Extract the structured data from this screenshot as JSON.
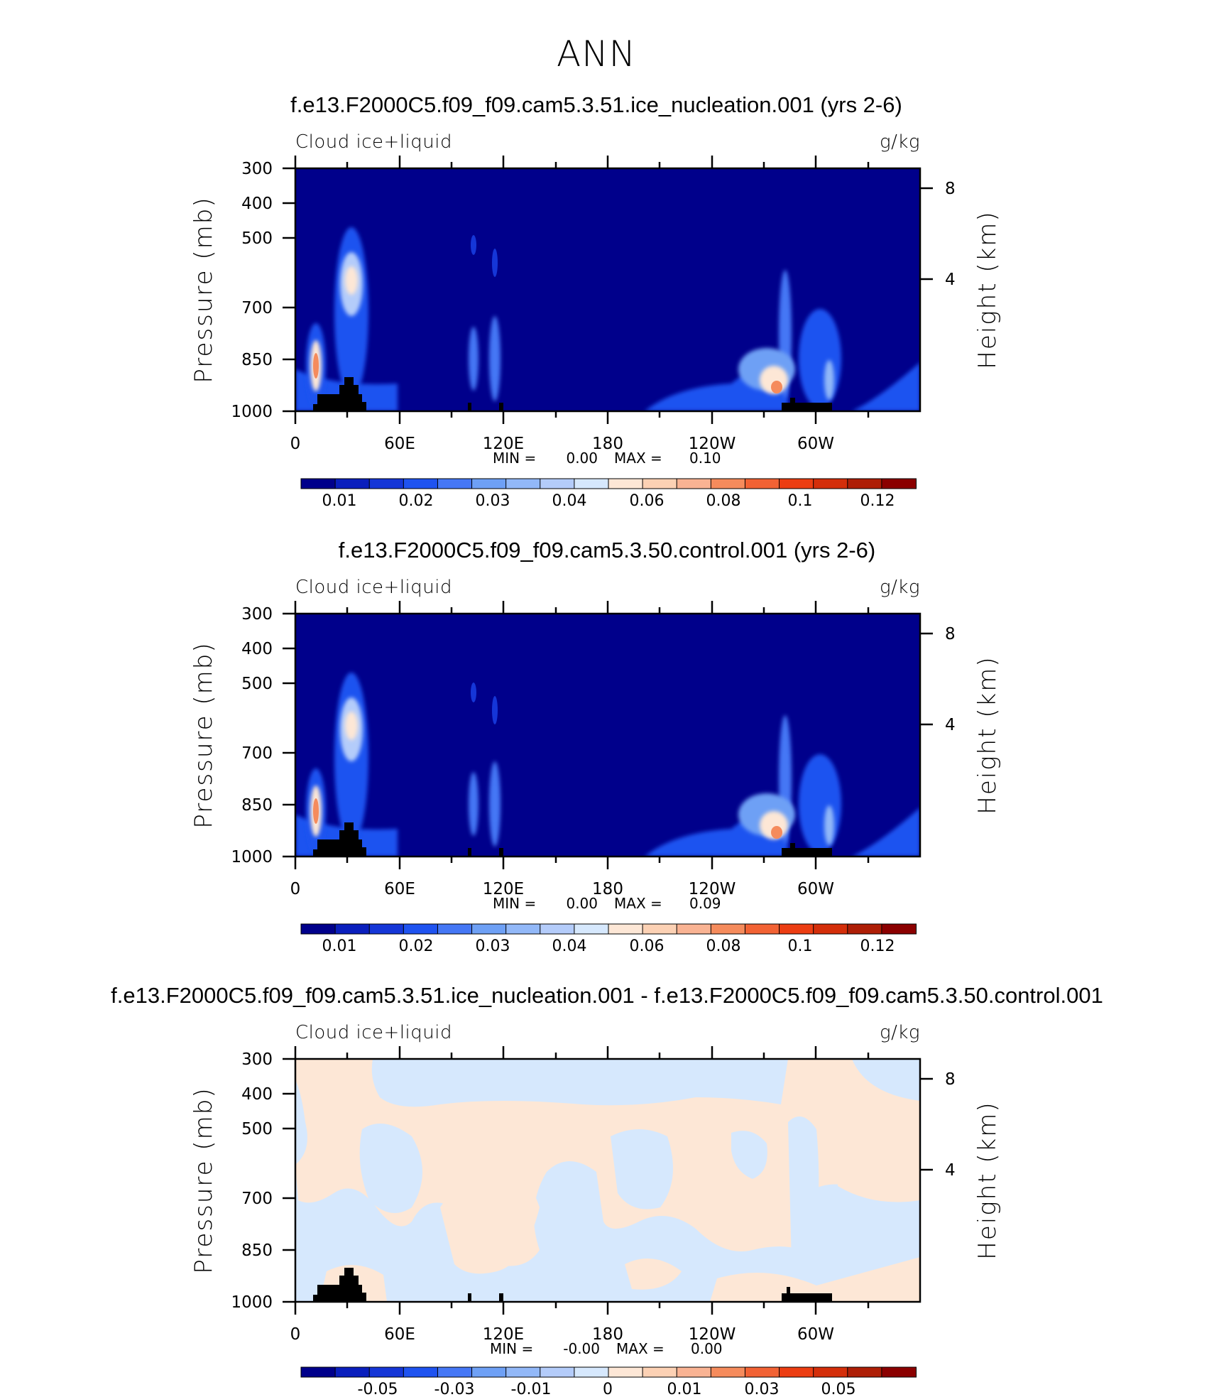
{
  "title": "ANN",
  "colors": {
    "bg_blue": "#00008b",
    "dark_blue": "#0a1fbd",
    "mid_blue": "#1f53f0",
    "light_blue": "#6ea0f5",
    "pale_blue": "#b4ccfa",
    "very_pale_blue": "#d6e8fd",
    "cream": "#fde7d6",
    "orange": "#f58b5c",
    "topography": "#000000"
  },
  "chart_data": [
    {
      "type": "contour",
      "title": "f.e13.F2000C5.f09_f09.cam5.3.51.ice_nucleation.001 (yrs 2-6)",
      "left_label": "Cloud  ice+liquid",
      "right_label": "g/kg",
      "ylabel": "Pressure  (mb)",
      "ylabel_right": "Height  (km)",
      "yticks": [
        "300",
        "400",
        "500",
        "700",
        "850",
        "1000"
      ],
      "yticks_right": [
        "8",
        "4"
      ],
      "xticks": [
        "0",
        "60E",
        "120E",
        "180",
        "120W",
        "60W"
      ],
      "min_label": "MIN  =",
      "min_value": "0.00",
      "max_label": "MAX  =",
      "max_value": "0.10",
      "colorbar_labels": [
        "0.01",
        "0.02",
        "0.03",
        "0.04",
        "0.06",
        "0.08",
        "0.1",
        "0.12"
      ],
      "colorbar_colors": [
        "#00008b",
        "#0a1fbd",
        "#1536d7",
        "#1f53f0",
        "#4577f5",
        "#6ea0f5",
        "#92b8f8",
        "#b4ccfa",
        "#d6e8fd",
        "#fde7d6",
        "#fcd1b4",
        "#f9b393",
        "#f58b5c",
        "#f26234",
        "#ec3d12",
        "#d42e0a",
        "#ae1e06",
        "#8b0000"
      ],
      "xlim": [
        0,
        360
      ],
      "ylim": [
        1000,
        300
      ],
      "features": [
        {
          "lon": 10,
          "p_top": 720,
          "p_peak": 850,
          "peak": 0.09
        },
        {
          "lon": 32,
          "p_top": 500,
          "p_peak": 620,
          "peak": 0.05
        },
        {
          "lon": 102,
          "p_top": 510,
          "p_peak": 850,
          "peak": 0.03
        },
        {
          "lon": 114,
          "p_top": 520,
          "p_peak": 850,
          "peak": 0.03
        },
        {
          "lon": 278,
          "p_top": 700,
          "p_peak": 920,
          "peak": 0.1
        },
        {
          "lon": 302,
          "p_top": 700,
          "p_peak": 900,
          "peak": 0.04
        }
      ]
    },
    {
      "type": "contour",
      "title": "f.e13.F2000C5.f09_f09.cam5.3.50.control.001 (yrs 2-6)",
      "left_label": "Cloud  ice+liquid",
      "right_label": "g/kg",
      "ylabel": "Pressure  (mb)",
      "ylabel_right": "Height  (km)",
      "yticks": [
        "300",
        "400",
        "500",
        "700",
        "850",
        "1000"
      ],
      "yticks_right": [
        "8",
        "4"
      ],
      "xticks": [
        "0",
        "60E",
        "120E",
        "180",
        "120W",
        "60W"
      ],
      "min_label": "MIN  =",
      "min_value": "0.00",
      "max_label": "MAX  =",
      "max_value": "0.09",
      "colorbar_labels": [
        "0.01",
        "0.02",
        "0.03",
        "0.04",
        "0.06",
        "0.08",
        "0.1",
        "0.12"
      ],
      "colorbar_colors": [
        "#00008b",
        "#0a1fbd",
        "#1536d7",
        "#1f53f0",
        "#4577f5",
        "#6ea0f5",
        "#92b8f8",
        "#b4ccfa",
        "#d6e8fd",
        "#fde7d6",
        "#fcd1b4",
        "#f9b393",
        "#f58b5c",
        "#f26234",
        "#ec3d12",
        "#d42e0a",
        "#ae1e06",
        "#8b0000"
      ],
      "xlim": [
        0,
        360
      ],
      "ylim": [
        1000,
        300
      ],
      "features": [
        {
          "lon": 10,
          "p_top": 720,
          "p_peak": 850,
          "peak": 0.09
        },
        {
          "lon": 32,
          "p_top": 500,
          "p_peak": 620,
          "peak": 0.05
        },
        {
          "lon": 102,
          "p_top": 520,
          "p_peak": 850,
          "peak": 0.03
        },
        {
          "lon": 114,
          "p_top": 530,
          "p_peak": 850,
          "peak": 0.03
        },
        {
          "lon": 278,
          "p_top": 700,
          "p_peak": 920,
          "peak": 0.09
        },
        {
          "lon": 302,
          "p_top": 700,
          "p_peak": 900,
          "peak": 0.04
        }
      ]
    },
    {
      "type": "contour",
      "title": "f.e13.F2000C5.f09_f09.cam5.3.51.ice_nucleation.001 - f.e13.F2000C5.f09_f09.cam5.3.50.control.001",
      "left_label": "Cloud  ice+liquid",
      "right_label": "g/kg",
      "ylabel": "Pressure  (mb)",
      "ylabel_right": "Height  (km)",
      "yticks": [
        "300",
        "400",
        "500",
        "700",
        "850",
        "1000"
      ],
      "yticks_right": [
        "8",
        "4"
      ],
      "xticks": [
        "0",
        "60E",
        "120E",
        "180",
        "120W",
        "60W"
      ],
      "min_label": "MIN  =",
      "min_value": "-0.00",
      "max_label": "MAX  =",
      "max_value": "0.00",
      "colorbar_labels": [
        "-0.05",
        "-0.03",
        "-0.01",
        "0",
        "0.01",
        "0.03",
        "0.05"
      ],
      "colorbar_colors": [
        "#00008b",
        "#0a1fbd",
        "#1536d7",
        "#1f53f0",
        "#4577f5",
        "#6ea0f5",
        "#92b8f8",
        "#b4ccfa",
        "#d6e8fd",
        "#fde7d6",
        "#fcd1b4",
        "#f9b393",
        "#f58b5c",
        "#f26234",
        "#ec3d12",
        "#d42e0a",
        "#ae1e06",
        "#8b0000"
      ],
      "xlim": [
        0,
        360
      ],
      "ylim": [
        1000,
        300
      ]
    }
  ]
}
